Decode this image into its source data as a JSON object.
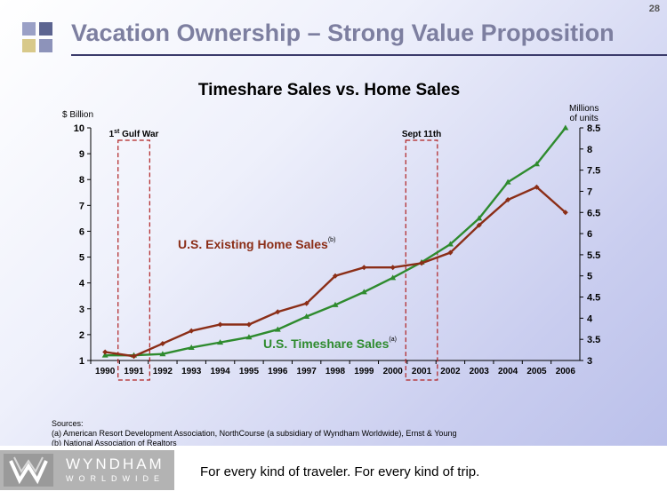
{
  "page_number": "28",
  "slide_title": "Vacation Ownership – Strong Value Proposition",
  "chart_data": {
    "type": "line",
    "title": "Timeshare Sales vs. Home Sales",
    "left_axis_label": "$ Billion",
    "right_axis_label_line1": "Millions",
    "right_axis_label_line2": "of units",
    "categories": [
      "1990",
      "1991",
      "1992",
      "1993",
      "1994",
      "1995",
      "1996",
      "1997",
      "1998",
      "1999",
      "2000",
      "2001",
      "2002",
      "2003",
      "2004",
      "2005",
      "2006"
    ],
    "ylim_left": [
      1,
      10
    ],
    "yticks_left": [
      "1",
      "2",
      "3",
      "4",
      "5",
      "6",
      "7",
      "8",
      "9",
      "10"
    ],
    "ylim_right": [
      3,
      8.5
    ],
    "yticks_right": [
      "3",
      "3.5",
      "4",
      "4.5",
      "5",
      "5.5",
      "6",
      "6.5",
      "7",
      "7.5",
      "8",
      "8.5"
    ],
    "series": [
      {
        "name": "U.S. Timeshare Sales",
        "superscript": "(a)",
        "axis": "left",
        "color": "#2e8b2e",
        "values": [
          1.2,
          1.2,
          1.25,
          1.5,
          1.7,
          1.9,
          2.2,
          2.7,
          3.15,
          3.65,
          4.2,
          4.8,
          5.5,
          6.5,
          7.9,
          8.6,
          10.0
        ]
      },
      {
        "name": "U.S. Existing Home Sales",
        "superscript": "(b)",
        "axis": "right",
        "color": "#8b2e17",
        "values": [
          3.2,
          3.1,
          3.4,
          3.7,
          3.85,
          3.85,
          4.15,
          4.35,
          5.0,
          5.2,
          5.2,
          5.3,
          5.55,
          6.2,
          6.8,
          7.1,
          6.5
        ]
      }
    ],
    "annotations": [
      {
        "label": "1",
        "superscript": "st",
        "rest": " Gulf War",
        "from": "1991",
        "to": "1991"
      },
      {
        "label": "Sept 11th",
        "superscript": "",
        "rest": "",
        "from": "2001",
        "to": "2001"
      }
    ]
  },
  "sources": {
    "heading": "Sources:",
    "items": [
      "(a)  American Resort Development Association, NorthCourse (a subsidiary of Wyndham Worldwide), Ernst & Young",
      "(b)  National Association of Realtors"
    ]
  },
  "logo": {
    "word": "WYNDHAM",
    "sub": "WORLDWIDE"
  },
  "tagline": "For every kind of traveler. For every kind of trip."
}
